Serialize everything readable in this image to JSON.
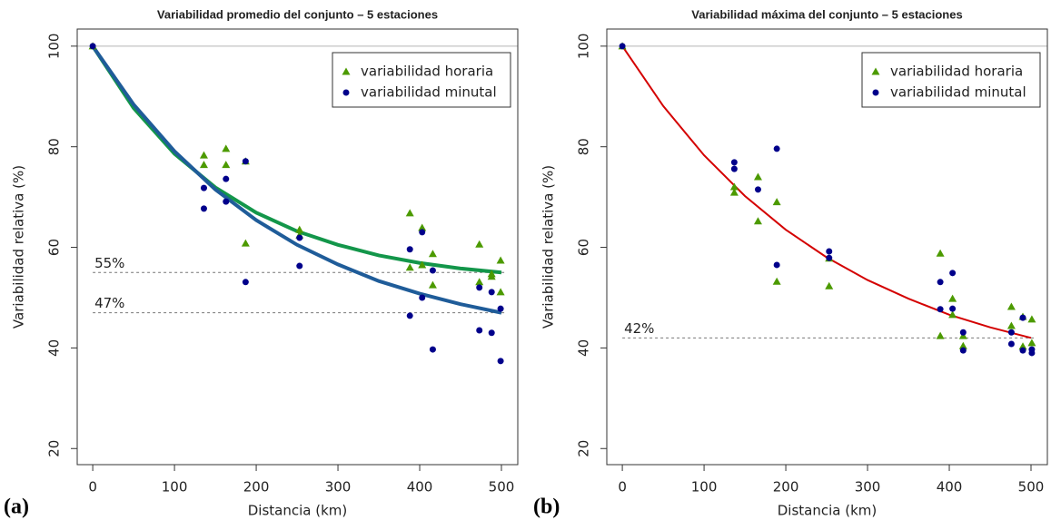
{
  "chart_data": [
    {
      "type": "scatter",
      "title": "Variabilidad promedio del conjunto – 5 estaciones",
      "panel_label": "(a)",
      "x_label": "Distancia (km)",
      "y_label": "Variabilidad relativa (%)",
      "xlim": [
        -19,
        520
      ],
      "ylim": [
        16.8,
        103.4
      ],
      "xticks": [
        0,
        100,
        200,
        300,
        400,
        500
      ],
      "yticks": [
        20,
        40,
        60,
        80,
        100
      ],
      "hlines": [
        100
      ],
      "legend": "topright",
      "series": [
        {
          "name": "variabilidad horaria",
          "color": "#4c9a00",
          "marker": "triangle",
          "x": [
            0,
            136,
            136,
            163,
            163,
            187,
            187,
            253,
            253,
            388,
            388,
            403,
            403,
            416,
            416,
            473,
            473,
            488,
            488,
            499,
            499
          ],
          "values": [
            100,
            78.3,
            76.4,
            79.6,
            76.4,
            77.1,
            60.8,
            63.5,
            62.4,
            66.8,
            56,
            63.9,
            56.5,
            58.7,
            52.5,
            60.6,
            53.1,
            54.7,
            54.2,
            57.4,
            51.1
          ]
        },
        {
          "name": "variabilidad minutal",
          "color": "#00008b",
          "marker": "circle",
          "x": [
            0,
            136,
            136,
            163,
            163,
            187,
            187,
            253,
            253,
            388,
            388,
            403,
            403,
            416,
            416,
            473,
            473,
            488,
            488,
            499,
            499
          ],
          "values": [
            100,
            71.8,
            67.7,
            73.6,
            69.1,
            77.1,
            53.1,
            61.9,
            56.3,
            59.6,
            46.4,
            63,
            50,
            55.4,
            39.7,
            52,
            43.5,
            51.1,
            43,
            47.8,
            37.4
          ]
        }
      ],
      "curves": [
        {
          "color": "#13964a",
          "x": [
            0,
            50,
            100,
            150,
            200,
            250,
            300,
            350,
            400,
            450,
            500
          ],
          "values": [
            100,
            87.7,
            78.6,
            71.9,
            66.9,
            63.2,
            60.5,
            58.4,
            56.9,
            55.8,
            55
          ]
        },
        {
          "color": "#1f5c99",
          "x": [
            0,
            50,
            100,
            150,
            200,
            250,
            300,
            350,
            400,
            450,
            500
          ],
          "values": [
            100,
            88.4,
            79.1,
            71.5,
            65.4,
            60.5,
            56.6,
            53.3,
            50.8,
            48.7,
            47
          ]
        }
      ],
      "reference_lines": [
        {
          "value": 55,
          "label": "55%"
        },
        {
          "value": 47,
          "label": "47%"
        }
      ]
    },
    {
      "type": "scatter",
      "title": "Variabilidad máxima del conjunto – 5 estaciones",
      "panel_label": "(b)",
      "x_label": "Distancia (km)",
      "y_label": "Variabilidad relativa (%)",
      "xlim": [
        -19,
        520
      ],
      "ylim": [
        16.8,
        103.4
      ],
      "xticks": [
        0,
        100,
        200,
        300,
        400,
        500
      ],
      "yticks": [
        20,
        40,
        60,
        80,
        100
      ],
      "hlines": [
        100
      ],
      "legend": "topright",
      "series": [
        {
          "name": "variabilidad horaria",
          "color": "#4c9a00",
          "marker": "triangle",
          "x": [
            0,
            137,
            137,
            166,
            166,
            189,
            189,
            253,
            253,
            389,
            389,
            404,
            404,
            417,
            417,
            476,
            476,
            490,
            490,
            501,
            501
          ],
          "values": [
            100,
            72,
            70.9,
            74,
            65.2,
            69,
            53.2,
            57.8,
            52.3,
            58.8,
            42.4,
            49.8,
            46.6,
            42.4,
            40.4,
            48.2,
            44.4,
            46.2,
            40.3,
            45.7,
            41
          ]
        },
        {
          "name": "variabilidad minutal",
          "color": "#00008b",
          "marker": "circle",
          "x": [
            0,
            137,
            137,
            166,
            189,
            189,
            253,
            253,
            389,
            389,
            404,
            404,
            417,
            417,
            476,
            476,
            490,
            490,
            501,
            501
          ],
          "values": [
            100,
            76.9,
            75.6,
            71.5,
            79.6,
            56.5,
            59.2,
            57.9,
            53.1,
            47.7,
            54.9,
            47.8,
            43.1,
            39.5,
            43.1,
            40.8,
            46,
            39.5,
            39.7,
            39
          ]
        }
      ],
      "curves": [
        {
          "color": "#d40000",
          "x": [
            0,
            50,
            100,
            150,
            200,
            250,
            300,
            350,
            400,
            450,
            500
          ],
          "values": [
            100,
            88.1,
            78.3,
            70.2,
            63.5,
            58,
            53.5,
            49.8,
            46.6,
            44.1,
            42
          ]
        }
      ],
      "reference_lines": [
        {
          "value": 42,
          "label": "42%"
        }
      ]
    }
  ]
}
